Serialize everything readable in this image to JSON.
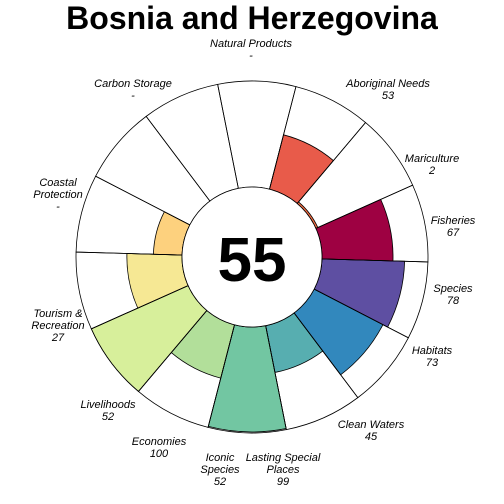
{
  "chart_data": {
    "type": "flower",
    "title": "Bosnia and Herzegovina",
    "overall_score": "55",
    "value_max": 100,
    "petals": [
      {
        "name": "Natural Products",
        "value": null,
        "label": "-",
        "color": "#ffffff"
      },
      {
        "name": "Aboriginal Needs",
        "value": 53,
        "label": "53",
        "color": "#e85b4a"
      },
      {
        "name": "Mariculture",
        "value": 2,
        "label": "2",
        "color": "#f46d43"
      },
      {
        "name": "Fisheries",
        "value": 67,
        "label": "67",
        "color": "#9e0142"
      },
      {
        "name": "Species",
        "value": 78,
        "label": "78",
        "color": "#5e4fa2"
      },
      {
        "name": "Habitats",
        "value": 73,
        "label": "73",
        "color": "#3288bd"
      },
      {
        "name": "Clean Waters",
        "value": 45,
        "label": "45",
        "color": "#57aeb0"
      },
      {
        "name": "Lasting Special Places",
        "value": 99,
        "label": "99",
        "color": "#72c6a2"
      },
      {
        "name": "Iconic Species",
        "value": 52,
        "label": "52",
        "color": "#b2df9a"
      },
      {
        "name": "Economies",
        "value": 100,
        "label": "100",
        "color": "#d7ef9b"
      },
      {
        "name": "Livelihoods",
        "value": 52,
        "label": "52",
        "color": "#f6e894"
      },
      {
        "name": "Tourism & Recreation",
        "value": 27,
        "label": "27",
        "color": "#fdd17e"
      },
      {
        "name": "Coastal Protection",
        "value": null,
        "label": "-",
        "color": "#ffffff"
      },
      {
        "name": "Carbon Storage",
        "value": null,
        "label": "-",
        "color": "#ffffff"
      }
    ]
  }
}
